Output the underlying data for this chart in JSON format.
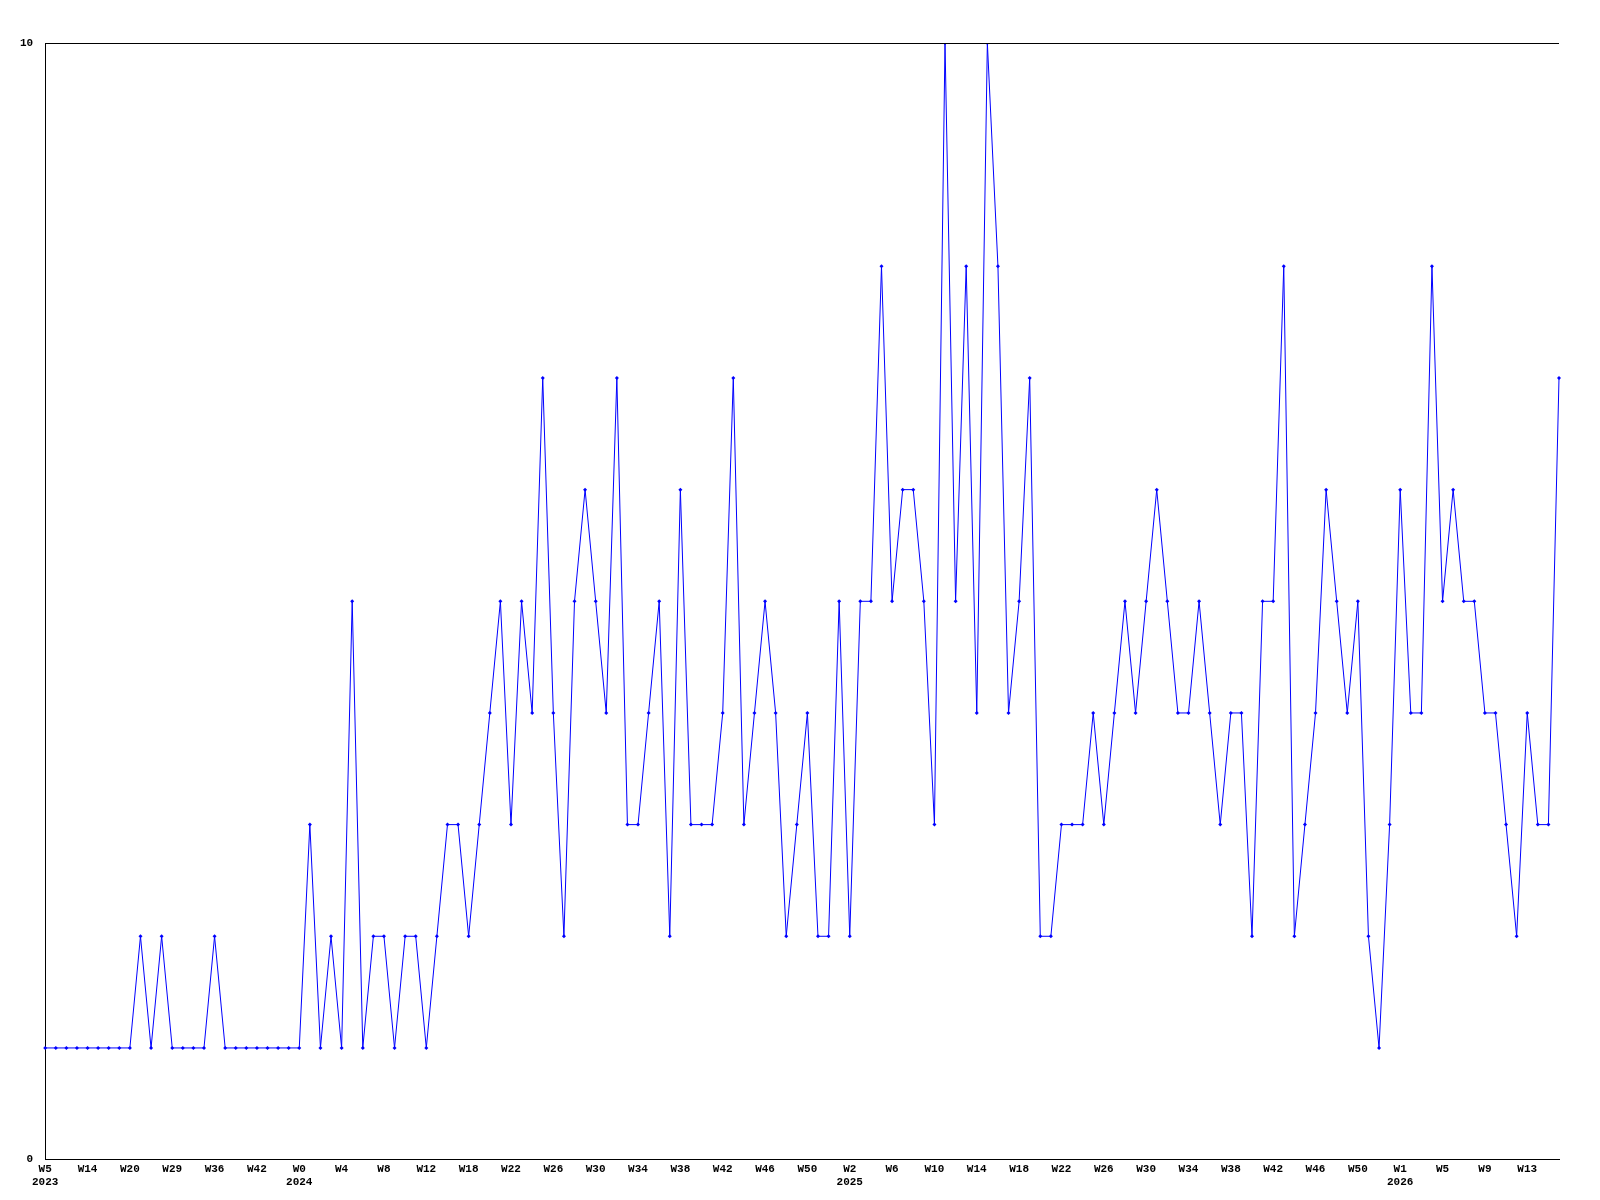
{
  "chart_data": {
    "type": "line",
    "categories": [
      "W5\n2023",
      null,
      null,
      null,
      "W14",
      null,
      null,
      null,
      "W20",
      null,
      null,
      null,
      "W29",
      null,
      null,
      null,
      "W36",
      null,
      null,
      null,
      "W42",
      null,
      null,
      null,
      "W0\n2024",
      null,
      null,
      null,
      "W4",
      null,
      null,
      null,
      "W8",
      null,
      null,
      null,
      "W12",
      null,
      null,
      null,
      "W18",
      null,
      null,
      null,
      "W22",
      null,
      null,
      null,
      "W26",
      null,
      null,
      null,
      "W30",
      null,
      null,
      null,
      "W34",
      null,
      null,
      null,
      "W38",
      null,
      null,
      null,
      "W42",
      null,
      null,
      null,
      "W46",
      null,
      null,
      null,
      "W50",
      null,
      null,
      null,
      "W2\n2025",
      null,
      null,
      null,
      "W6",
      null,
      null,
      null,
      "W10",
      null,
      null,
      null,
      "W14",
      null,
      null,
      null,
      "W18",
      null,
      null,
      null,
      "W22",
      null,
      null,
      null,
      "W26",
      null,
      null,
      null,
      "W30",
      null,
      null,
      null,
      "W34",
      null,
      null,
      null,
      "W38",
      null,
      null,
      null,
      "W42",
      null,
      null,
      null,
      "W46",
      null,
      null,
      null,
      "W50",
      null,
      null,
      null,
      "W1\n2026",
      null,
      null,
      null,
      "W5",
      null,
      null,
      null,
      "W9",
      null,
      null,
      null,
      "W13",
      null,
      null,
      null
    ],
    "series": [
      {
        "color": "#0000ff",
        "values": [
          1,
          1,
          1,
          1,
          1,
          1,
          1,
          1,
          1,
          2,
          1,
          2,
          1,
          1,
          1,
          1,
          2,
          1,
          1,
          1,
          1,
          1,
          1,
          1,
          1,
          3,
          1,
          2,
          1,
          5,
          1,
          2,
          2,
          1,
          2,
          2,
          1,
          2,
          3,
          3,
          2,
          3,
          4,
          5,
          3,
          5,
          4,
          7,
          4,
          2,
          5,
          6,
          5,
          4,
          7,
          3,
          3,
          4,
          5,
          2,
          6,
          3,
          3,
          3,
          4,
          7,
          3,
          4,
          5,
          4,
          2,
          3,
          4,
          2,
          2,
          5,
          2,
          5,
          5,
          8,
          5,
          6,
          6,
          5,
          3,
          10,
          5,
          8,
          4,
          10,
          8,
          4,
          5,
          7,
          2,
          2,
          3,
          3,
          3,
          4,
          3,
          4,
          5,
          4,
          5,
          6,
          5,
          4,
          4,
          5,
          4,
          3,
          4,
          4,
          2,
          5,
          5,
          8,
          2,
          3,
          4,
          6,
          5,
          4,
          5,
          2,
          1,
          3,
          6,
          4,
          4,
          8,
          5,
          6,
          5,
          5,
          4,
          4,
          3,
          2,
          4,
          3,
          3,
          7
        ]
      }
    ],
    "ylim": [
      0,
      10
    ],
    "yticks": [
      0,
      10
    ],
    "grid": false,
    "legend": false,
    "marker": "diamond",
    "line_style": "solid"
  }
}
